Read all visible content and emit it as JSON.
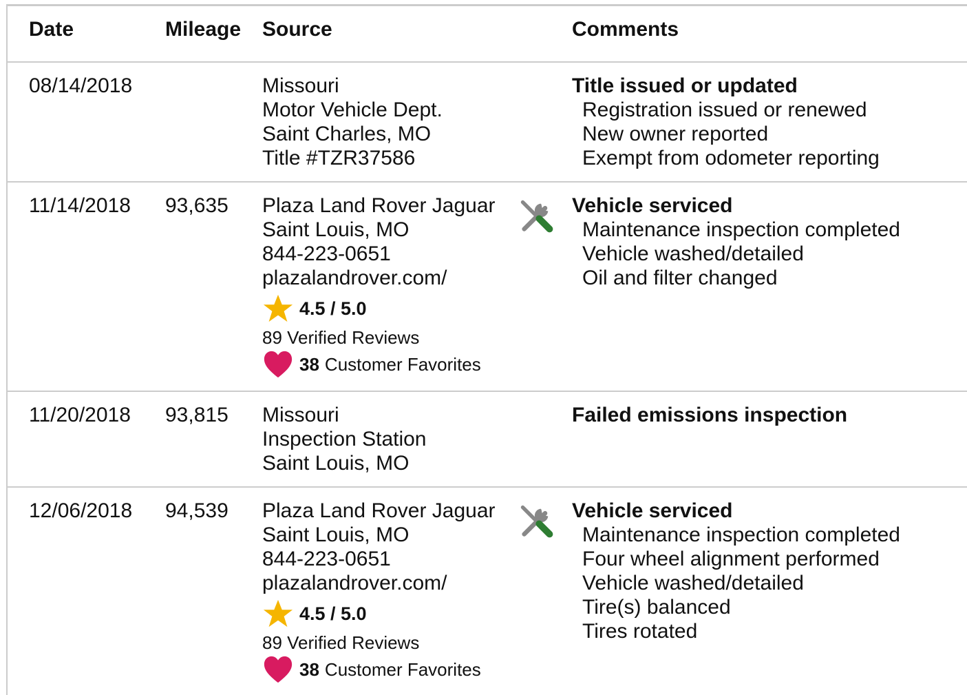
{
  "table": {
    "headers": [
      "Date",
      "Mileage",
      "Source",
      "Comments"
    ],
    "rows": [
      {
        "date": "08/14/2018",
        "source": [
          "Missouri",
          "Motor Vehicle Dept.",
          "Saint Charles, MO",
          "Title #TZR37586"
        ],
        "comment_title": "Title issued or updated",
        "comment_items": [
          "Registration issued or renewed",
          "New owner reported",
          "Exempt from odometer reporting"
        ]
      },
      {
        "date": "11/14/2018",
        "mileage": "93,635",
        "source": [
          "Plaza Land Rover Jaguar",
          "Saint Louis, MO",
          "844-223-0651",
          "plazalandrover.com/"
        ],
        "rating": "4.5 / 5.0",
        "reviews": "89 Verified Reviews",
        "favorites_count": "38",
        "favorites_label": "Customer Favorites",
        "comment_title": "Vehicle serviced",
        "comment_items": [
          "Maintenance inspection completed",
          "Vehicle washed/detailed",
          "Oil and filter changed"
        ]
      },
      {
        "date": "11/20/2018",
        "mileage": "93,815",
        "source": [
          "Missouri",
          "Inspection Station",
          "Saint Louis, MO"
        ],
        "comment_title": "Failed emissions inspection",
        "comment_items": []
      },
      {
        "date": "12/06/2018",
        "mileage": "94,539",
        "source": [
          "Plaza Land Rover Jaguar",
          "Saint Louis, MO",
          "844-223-0651",
          "plazalandrover.com/"
        ],
        "rating": "4.5 / 5.0",
        "reviews": "89 Verified Reviews",
        "favorites_count": "38",
        "favorites_label": "Customer Favorites",
        "comment_title": "Vehicle serviced",
        "comment_items": [
          "Maintenance inspection completed",
          "Four wheel alignment performed",
          "Vehicle washed/detailed",
          "Tire(s) balanced",
          "Tires rotated"
        ]
      }
    ]
  }
}
